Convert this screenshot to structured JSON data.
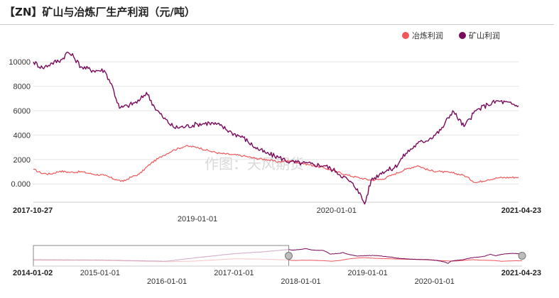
{
  "title": "【ZN】矿山与冶炼厂生产利润（元/吨）",
  "watermark": "作图：天风期货",
  "chart_data": {
    "type": "line",
    "ylim": [
      -1500,
      11000
    ],
    "yticks": [
      {
        "value": 10000,
        "label": "10000"
      },
      {
        "value": 8000,
        "label": "8000"
      },
      {
        "value": 6000,
        "label": "6000"
      },
      {
        "value": 4000,
        "label": "4000"
      },
      {
        "value": 2000,
        "label": "2000"
      },
      {
        "value": 0,
        "label": "0.000"
      }
    ],
    "grid": true,
    "legend_position": "top-right",
    "x_range": [
      "2017-10-27",
      "2021-04-23"
    ],
    "x_range_labels": {
      "start": "2017-10-27",
      "end": "2021-04-23"
    },
    "x_tick_labels": [
      "2019-01-01",
      "2020-01-01"
    ],
    "series": [
      {
        "name": "冶炼利润",
        "color": "#f0575b",
        "points": [
          [
            "2017-10-27",
            1200
          ],
          [
            "2017-11-15",
            900
          ],
          [
            "2017-12-10",
            800
          ],
          [
            "2018-01-05",
            1050
          ],
          [
            "2018-02-01",
            950
          ],
          [
            "2018-03-01",
            1000
          ],
          [
            "2018-04-01",
            800
          ],
          [
            "2018-05-01",
            700
          ],
          [
            "2018-06-01",
            350
          ],
          [
            "2018-06-20",
            200
          ],
          [
            "2018-07-10",
            550
          ],
          [
            "2018-08-01",
            800
          ],
          [
            "2018-09-01",
            1700
          ],
          [
            "2018-10-01",
            2300
          ],
          [
            "2018-11-01",
            2800
          ],
          [
            "2018-12-01",
            3100
          ],
          [
            "2019-01-01",
            3000
          ],
          [
            "2019-02-01",
            2700
          ],
          [
            "2019-03-01",
            2500
          ],
          [
            "2019-04-01",
            2400
          ],
          [
            "2019-05-01",
            2300
          ],
          [
            "2019-06-01",
            2100
          ],
          [
            "2019-07-01",
            2000
          ],
          [
            "2019-08-01",
            1800
          ],
          [
            "2019-09-01",
            1900
          ],
          [
            "2019-10-01",
            1700
          ],
          [
            "2019-11-01",
            1500
          ],
          [
            "2019-12-01",
            1300
          ],
          [
            "2020-01-01",
            1000
          ],
          [
            "2020-02-01",
            700
          ],
          [
            "2020-03-01",
            500
          ],
          [
            "2020-04-01",
            300
          ],
          [
            "2020-05-01",
            400
          ],
          [
            "2020-06-01",
            800
          ],
          [
            "2020-07-01",
            1200
          ],
          [
            "2020-08-01",
            1500
          ],
          [
            "2020-09-01",
            1100
          ],
          [
            "2020-10-01",
            1000
          ],
          [
            "2020-11-01",
            900
          ],
          [
            "2020-12-01",
            700
          ],
          [
            "2021-01-01",
            100
          ],
          [
            "2021-02-01",
            350
          ],
          [
            "2021-03-01",
            500
          ],
          [
            "2021-04-23",
            550
          ]
        ]
      },
      {
        "name": "矿山利润",
        "color": "#7a0a5c",
        "points": [
          [
            "2017-10-27",
            10000
          ],
          [
            "2017-11-20",
            9500
          ],
          [
            "2017-12-15",
            9900
          ],
          [
            "2018-01-10",
            10200
          ],
          [
            "2018-01-25",
            10800
          ],
          [
            "2018-02-10",
            10400
          ],
          [
            "2018-03-01",
            9600
          ],
          [
            "2018-04-01",
            9300
          ],
          [
            "2018-05-01",
            9300
          ],
          [
            "2018-05-20",
            8200
          ],
          [
            "2018-06-10",
            6200
          ],
          [
            "2018-07-01",
            6400
          ],
          [
            "2018-08-01",
            6800
          ],
          [
            "2018-08-20",
            7500
          ],
          [
            "2018-09-10",
            6300
          ],
          [
            "2018-10-01",
            5500
          ],
          [
            "2018-11-01",
            4600
          ],
          [
            "2018-12-01",
            4700
          ],
          [
            "2019-01-01",
            4900
          ],
          [
            "2019-02-01",
            5000
          ],
          [
            "2019-03-01",
            4800
          ],
          [
            "2019-04-01",
            4200
          ],
          [
            "2019-05-01",
            3800
          ],
          [
            "2019-06-01",
            3000
          ],
          [
            "2019-07-01",
            2500
          ],
          [
            "2019-08-01",
            2200
          ],
          [
            "2019-09-01",
            1800
          ],
          [
            "2019-10-01",
            1700
          ],
          [
            "2019-11-01",
            1600
          ],
          [
            "2019-12-01",
            1500
          ],
          [
            "2020-01-01",
            1000
          ],
          [
            "2020-02-01",
            300
          ],
          [
            "2020-02-25",
            -400
          ],
          [
            "2020-03-15",
            -1650
          ],
          [
            "2020-04-01",
            300
          ],
          [
            "2020-05-01",
            1000
          ],
          [
            "2020-06-01",
            1300
          ],
          [
            "2020-07-01",
            2500
          ],
          [
            "2020-08-01",
            3300
          ],
          [
            "2020-09-01",
            3700
          ],
          [
            "2020-10-01",
            4400
          ],
          [
            "2020-11-01",
            6000
          ],
          [
            "2020-12-01",
            4700
          ],
          [
            "2021-01-01",
            6000
          ],
          [
            "2021-02-01",
            6500
          ],
          [
            "2021-03-01",
            6800
          ],
          [
            "2021-04-23",
            6400
          ]
        ]
      }
    ],
    "navigator": {
      "start_label": "2014-01-02",
      "end_label": "2021-04-23",
      "tick_labels_top": [
        "2015-01-01",
        "2017-01-01",
        "2019-01-01"
      ],
      "tick_labels_bottom": [
        "2016-01-01",
        "2018-01-01",
        "2020-01-01"
      ],
      "full_range": [
        "2014-01-02",
        "2021-04-23"
      ]
    }
  }
}
